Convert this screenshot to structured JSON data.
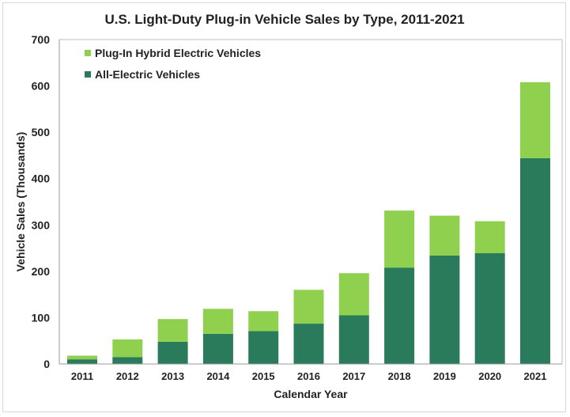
{
  "chart_data": {
    "type": "bar",
    "stacked": true,
    "title": "U.S. Light-Duty Plug-in Vehicle Sales by Type, 2011-2021",
    "xlabel": "Calendar Year",
    "ylabel": "Vehicle Sales (Thousands)",
    "ylim": [
      0,
      700
    ],
    "yticks": [
      0,
      100,
      200,
      300,
      400,
      500,
      600,
      700
    ],
    "grid": false,
    "legend_position": "top-left",
    "categories": [
      "2011",
      "2012",
      "2013",
      "2014",
      "2015",
      "2016",
      "2017",
      "2018",
      "2019",
      "2020",
      "2021"
    ],
    "series": [
      {
        "name": "All-Electric Vehicles",
        "color": "#2a7b5b",
        "values": [
          10,
          15,
          48,
          65,
          71,
          87,
          105,
          208,
          234,
          239,
          444
        ]
      },
      {
        "name": "Plug-In Hybrid Electric Vehicles",
        "color": "#8fd14f",
        "values": [
          8,
          38,
          49,
          54,
          43,
          73,
          91,
          123,
          86,
          69,
          164
        ]
      }
    ],
    "legend_order": [
      1,
      0
    ]
  }
}
